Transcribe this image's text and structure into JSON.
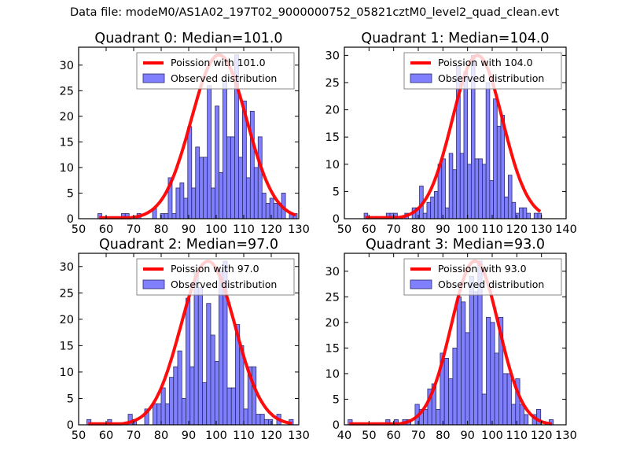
{
  "figure": {
    "suptitle": "Data file: modeM0/AS1A02_197T02_9000000752_05821cztM0_level2_quad_clean.evt"
  },
  "colors": {
    "bar_fill": "#8080ff",
    "bar_edge": "#2a2a66",
    "curve": "#ff0000",
    "frame": "#000000",
    "legend_edge": "#888888"
  },
  "chart_data": [
    {
      "type": "bar",
      "title": "Quadrant 0: Median=101.0",
      "median": 101.0,
      "xlim": [
        50,
        130
      ],
      "ylim": [
        0,
        33.5
      ],
      "xticks": [
        50,
        60,
        70,
        80,
        90,
        100,
        110,
        120,
        130
      ],
      "yticks": [
        0,
        5,
        10,
        15,
        20,
        25,
        30
      ],
      "legend": {
        "placement": "top-right",
        "entries": [
          "Poission with 101.0",
          "Observed distribution"
        ]
      },
      "bins": {
        "start": 57.0,
        "width": 1.42
      },
      "values": [
        1,
        0,
        0,
        0,
        0,
        0,
        1,
        1,
        0,
        0,
        1,
        0,
        0,
        0,
        2,
        0,
        1,
        1,
        8,
        1,
        6,
        7,
        4,
        18,
        6,
        14,
        12,
        12,
        26,
        6,
        22,
        9,
        27,
        16,
        16,
        32,
        12,
        23,
        8,
        21,
        10,
        16,
        5,
        3,
        4,
        3,
        3,
        5,
        0,
        1,
        1
      ],
      "curve_peak": 32
    },
    {
      "type": "bar",
      "title": "Quadrant 1: Median=104.0",
      "median": 104.0,
      "xlim": [
        50,
        140
      ],
      "ylim": [
        0,
        31.5
      ],
      "xticks": [
        50,
        60,
        70,
        80,
        90,
        100,
        110,
        120,
        130,
        140
      ],
      "yticks": [
        0,
        5,
        10,
        15,
        20,
        25,
        30
      ],
      "legend": {
        "placement": "top-right",
        "entries": [
          "Poission with 104.0",
          "Observed distribution"
        ]
      },
      "bins": {
        "start": 58.0,
        "width": 1.5
      },
      "values": [
        1,
        0,
        0,
        0,
        0,
        0,
        1,
        1,
        1,
        0,
        0,
        1,
        0,
        2,
        2,
        6,
        1,
        3,
        4,
        5,
        10,
        11,
        2,
        12,
        9,
        28,
        12,
        27,
        10,
        30,
        11,
        11,
        10,
        25,
        7,
        22,
        17,
        19,
        4,
        8,
        3,
        1,
        2,
        2,
        1,
        0,
        1,
        1
      ],
      "curve_peak": 30
    },
    {
      "type": "bar",
      "title": "Quadrant 2: Median=97.0",
      "median": 97.0,
      "xlim": [
        50,
        130
      ],
      "ylim": [
        0,
        32.5
      ],
      "xticks": [
        50,
        60,
        70,
        80,
        90,
        100,
        110,
        120,
        130
      ],
      "yticks": [
        0,
        5,
        10,
        15,
        20,
        25,
        30
      ],
      "legend": {
        "placement": "top-right",
        "entries": [
          "Poission with 97.0",
          "Observed distribution"
        ]
      },
      "bins": {
        "start": 53.0,
        "width": 1.5
      },
      "values": [
        1,
        0,
        0,
        0,
        0,
        1,
        0,
        0,
        0,
        0,
        2,
        1,
        0,
        0,
        3,
        0,
        4,
        4,
        7,
        4,
        9,
        11,
        14,
        5,
        24,
        11,
        29,
        26,
        8,
        23,
        17,
        12,
        29,
        31,
        7,
        7,
        19,
        15,
        3,
        11,
        11,
        2,
        2,
        1,
        1,
        0,
        2,
        0,
        0,
        1
      ],
      "curve_peak": 31
    },
    {
      "type": "bar",
      "title": "Quadrant 3: Median=93.0",
      "median": 93.0,
      "xlim": [
        40,
        130
      ],
      "ylim": [
        0,
        33.5
      ],
      "xticks": [
        40,
        50,
        60,
        70,
        80,
        90,
        100,
        110,
        120,
        130
      ],
      "yticks": [
        0,
        5,
        10,
        15,
        20,
        25,
        30
      ],
      "legend": {
        "placement": "top-right",
        "entries": [
          "Poission with 93.0",
          "Observed distribution"
        ]
      },
      "bins": {
        "start": 41.5,
        "width": 1.7
      },
      "values": [
        1,
        0,
        0,
        0,
        0,
        0,
        0,
        0,
        0,
        1,
        0,
        1,
        0,
        1,
        1,
        0,
        4,
        3,
        3,
        7,
        8,
        3,
        14,
        13,
        9,
        15,
        25,
        24,
        18,
        29,
        26,
        32,
        6,
        21,
        20,
        14,
        21,
        10,
        10,
        4,
        9,
        4,
        2,
        0,
        2,
        3,
        0,
        0,
        1
      ],
      "curve_peak": 32
    }
  ]
}
